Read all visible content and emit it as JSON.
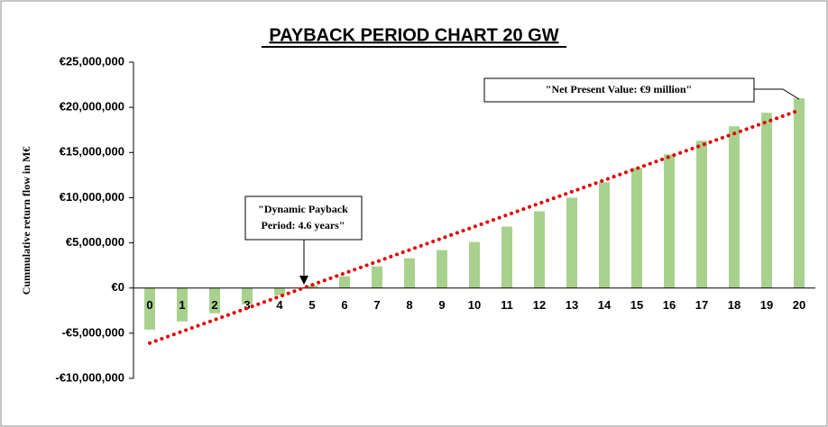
{
  "chart_data": {
    "type": "bar",
    "title": "PAYBACK PERIOD CHART 20 GW",
    "y_label": "Cummulative return flow in M€",
    "categories": [
      "0",
      "1",
      "2",
      "3",
      "4",
      "5",
      "6",
      "7",
      "8",
      "9",
      "10",
      "11",
      "12",
      "13",
      "14",
      "15",
      "16",
      "17",
      "18",
      "19",
      "20"
    ],
    "values": [
      -4600000,
      -3700000,
      -2800000,
      -1800000,
      -800000,
      300000,
      1300000,
      2400000,
      3300000,
      4200000,
      5100000,
      6800000,
      8500000,
      10000000,
      11700000,
      13300000,
      14800000,
      16300000,
      17900000,
      19400000,
      21000000
    ],
    "color": "#a9d18e",
    "trendline": {
      "type": "linear",
      "color": "#e00000"
    },
    "ylim": [
      -10000000,
      25000000
    ],
    "yticks": [
      {
        "value": -10000000,
        "label": "-€10,000,000"
      },
      {
        "value": -5000000,
        "label": "-€5,000,000"
      },
      {
        "value": 0,
        "label": "€0"
      },
      {
        "value": 5000000,
        "label": "€5,000,000"
      },
      {
        "value": 10000000,
        "label": "€10,000,000"
      },
      {
        "value": 15000000,
        "label": "€15,000,000"
      },
      {
        "value": 20000000,
        "label": "€20,000,000"
      },
      {
        "value": 25000000,
        "label": "€25,000,000"
      }
    ],
    "annotations": [
      {
        "lines": [
          "\"Net Present Value: €9 million\""
        ]
      },
      {
        "lines": [
          "\"Dynamic Payback",
          "Period: 4.6 years\""
        ]
      }
    ]
  }
}
